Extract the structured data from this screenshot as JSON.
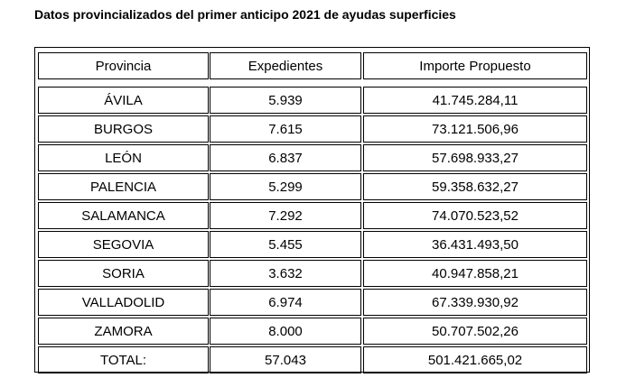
{
  "title": "Datos provincializados del primer anticipo 2021 de ayudas superficies",
  "table": {
    "header": [
      "Provincia",
      "Expedientes",
      "Importe Propuesto"
    ],
    "rows": [
      [
        "ÁVILA",
        "5.939",
        "41.745.284,11"
      ],
      [
        "BURGOS",
        "7.615",
        "73.121.506,96"
      ],
      [
        "LEÓN",
        "6.837",
        "57.698.933,27"
      ],
      [
        "PALENCIA",
        "5.299",
        "59.358.632,27"
      ],
      [
        "SALAMANCA",
        "7.292",
        "74.070.523,52"
      ],
      [
        "SEGOVIA",
        "5.455",
        "36.431.493,50"
      ],
      [
        "SORIA",
        "3.632",
        "40.947.858,21"
      ],
      [
        "VALLADOLID",
        "6.974",
        "67.339.930,92"
      ],
      [
        "ZAMORA",
        "8.000",
        "50.707.502,26"
      ],
      [
        "TOTAL:",
        "57.043",
        "501.421.665,02"
      ]
    ]
  }
}
